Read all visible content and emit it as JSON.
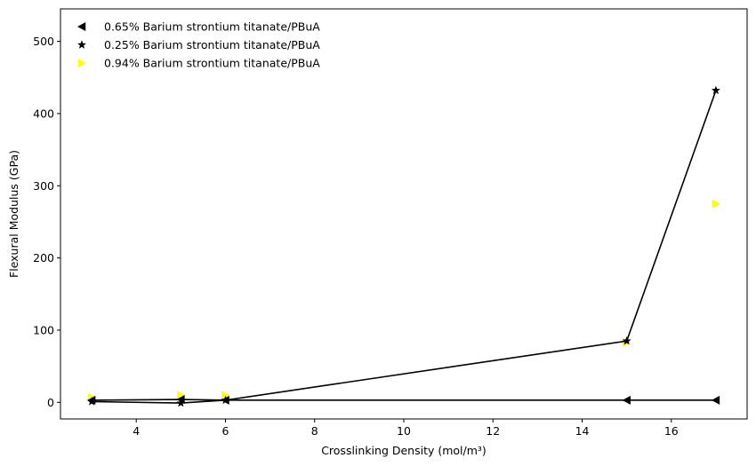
{
  "chart_data": {
    "type": "scatter",
    "title": "",
    "xlabel": "Crosslinking Density (mol/m³)",
    "ylabel": "Flexural Modulus (GPa)",
    "xlim": [
      2.3,
      17.7
    ],
    "ylim": [
      -23,
      545
    ],
    "xticks": [
      4,
      6,
      8,
      10,
      12,
      14,
      16
    ],
    "yticks": [
      0,
      100,
      200,
      300,
      400,
      500
    ],
    "grid": false,
    "legend_position": "upper-left",
    "series": [
      {
        "name": "0.65% Barium strontium titanate/PBuA",
        "marker": "triangle-left",
        "color": "#000000",
        "line": true,
        "x": [
          3,
          5,
          6,
          15,
          17
        ],
        "y": [
          3,
          4,
          3,
          3,
          3
        ]
      },
      {
        "name": "0.25% Barium strontium titanate/PBuA",
        "marker": "star",
        "color": "#000000",
        "line": true,
        "x": [
          3,
          5,
          6,
          15,
          17
        ],
        "y": [
          1,
          -1,
          3,
          85,
          432
        ]
      },
      {
        "name": "0.94% Barium strontium titanate/PBuA",
        "marker": "triangle-right",
        "color": "#ffff00",
        "line": false,
        "x": [
          3,
          5,
          6,
          15,
          17
        ],
        "y": [
          7,
          10,
          10,
          83,
          275
        ]
      }
    ]
  }
}
